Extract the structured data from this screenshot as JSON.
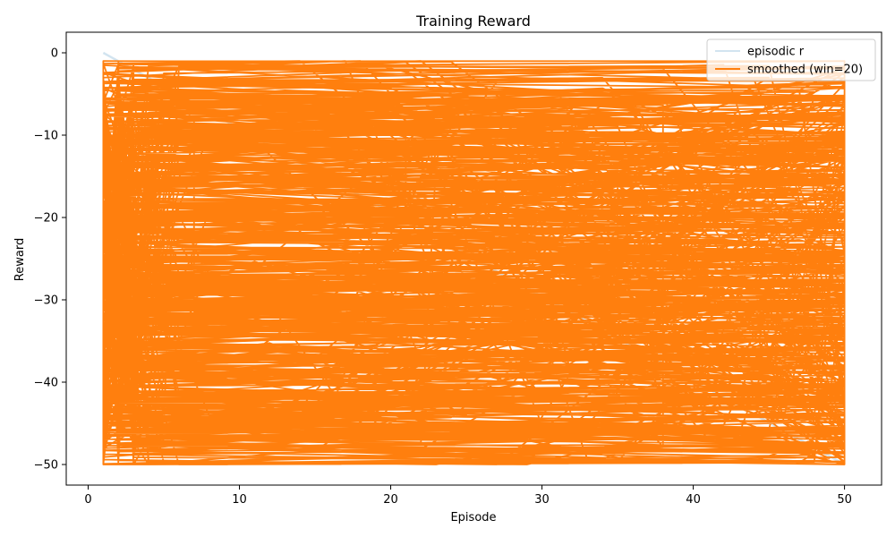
{
  "chart_data": {
    "type": "line",
    "title": "Training Reward",
    "xlabel": "Episode",
    "ylabel": "Reward",
    "xlim": [
      -1.45,
      52.45
    ],
    "ylim": [
      -52.5,
      2.5
    ],
    "xticks": [
      0,
      10,
      20,
      30,
      40,
      50
    ],
    "yticks": [
      0,
      -10,
      -20,
      -30,
      -40,
      -50
    ],
    "grid": false,
    "legend": {
      "placement": "top-right",
      "entries": [
        "episodic r",
        "smoothed (win=20)"
      ]
    },
    "series": [
      {
        "name": "episodic r",
        "color": "#1f77b4",
        "opacity": 0.2,
        "x": [
          1,
          50
        ],
        "y": [
          0,
          -50
        ]
      },
      {
        "name": "smoothed (win=20)",
        "color": "#ff7f0e",
        "pattern": "dense back-and-forth segments across episodes 1–50, rewards spanning about -1 to -50",
        "x": [
          1,
          50,
          1,
          50,
          1,
          45,
          2,
          50,
          1,
          48,
          3,
          50,
          1,
          50,
          1,
          50,
          2,
          49,
          1,
          50,
          1,
          50,
          4,
          50,
          1,
          50,
          2,
          50,
          1,
          50,
          3,
          50,
          1,
          47,
          1,
          50,
          2,
          50,
          1,
          50,
          1,
          50,
          3,
          50,
          2,
          50,
          1,
          50,
          1,
          50,
          2,
          50,
          1,
          50,
          3,
          50,
          1,
          50,
          2,
          50
        ],
        "y": [
          -1.5,
          -6.5,
          -2.5,
          -8.5,
          -3.5,
          -5.5,
          -4.5,
          -10,
          -6,
          -12,
          -7.5,
          -14,
          -9,
          -16,
          -10.5,
          -17.5,
          -12,
          -19,
          -13.5,
          -20.5,
          -15,
          -22,
          -16.5,
          -24,
          -18,
          -25.5,
          -19.5,
          -27,
          -21,
          -28.5,
          -23,
          -30,
          -24.5,
          -31,
          -26.5,
          -32.5,
          -28.5,
          -34,
          -30.5,
          -35.5,
          -32,
          -37,
          -33.5,
          -38.5,
          -35,
          -40,
          -36.5,
          -41.5,
          -38,
          -43,
          -40.5,
          -44.5,
          -42.5,
          -46,
          -44,
          -47.5,
          -45,
          -48.5,
          -47.5,
          -50
        ]
      }
    ]
  }
}
